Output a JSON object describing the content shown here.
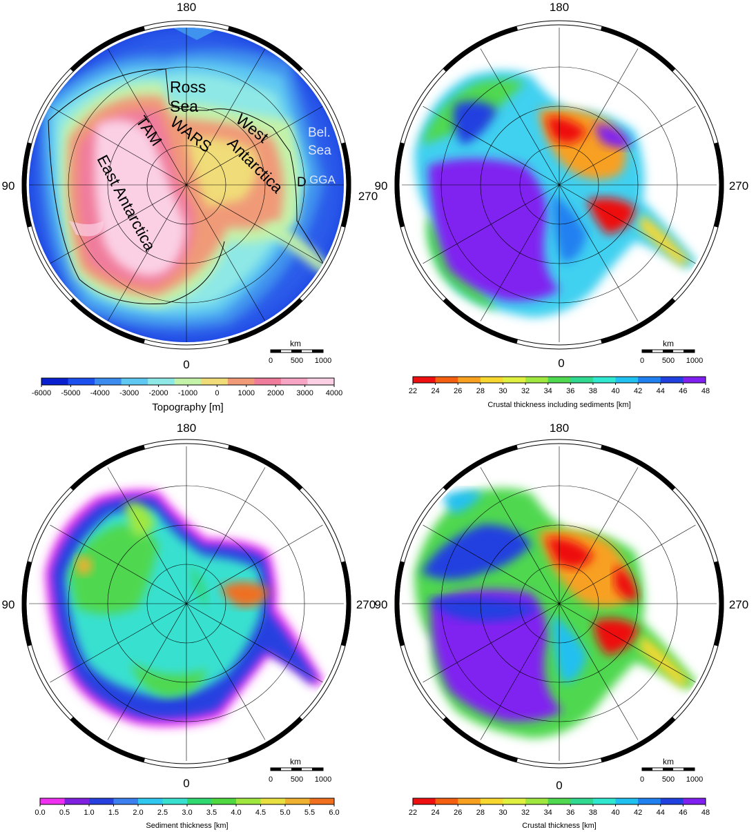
{
  "panels": [
    {
      "id": "topography",
      "longitude_labels": {
        "top": "180",
        "left": "90",
        "right": "270",
        "bottom": "0"
      },
      "scalebar": {
        "unit": "km",
        "ticks": [
          "0",
          "500",
          "1000"
        ]
      },
      "region_labels": [
        "Ross",
        "Sea",
        "TAM",
        "WARS",
        "West",
        "Antarctica",
        "East Antarctica",
        "Bel.",
        "Sea",
        "D",
        "GGA"
      ],
      "colorbar": {
        "title": "Topography [m]",
        "ticks": [
          "-6000",
          "-5000",
          "-4000",
          "-3000",
          "-2000",
          "-1000",
          "0",
          "1000",
          "2000",
          "3000",
          "4000"
        ],
        "colors": [
          "#0a1fd0",
          "#1c50ee",
          "#3c8cf0",
          "#5ec8f2",
          "#8ee8e6",
          "#c4f2a8",
          "#f0dc78",
          "#f09a78",
          "#f07c9c",
          "#f8a4c4",
          "#fbd0e4"
        ]
      }
    },
    {
      "id": "crustal-thickness-with-sediments",
      "longitude_labels": {
        "top": "180",
        "left": "90",
        "right": "270",
        "bottom": "0"
      },
      "scalebar": {
        "unit": "km",
        "ticks": [
          "0",
          "500",
          "1000"
        ]
      },
      "colorbar": {
        "title": "Crustal thickness including sediments [km]",
        "ticks": [
          "22",
          "24",
          "26",
          "28",
          "30",
          "32",
          "34",
          "36",
          "38",
          "40",
          "42",
          "44",
          "46",
          "48"
        ],
        "colors": [
          "#ee1010",
          "#f46010",
          "#f8a020",
          "#f8d830",
          "#e0f040",
          "#a0e840",
          "#50d850",
          "#30d890",
          "#30e8d0",
          "#20c0f0",
          "#2080f0",
          "#2040e0",
          "#8020f0"
        ]
      }
    },
    {
      "id": "sediment-thickness",
      "longitude_labels": {
        "top": "180",
        "left": "90",
        "right": "270",
        "bottom": "0"
      },
      "scalebar": {
        "unit": "km",
        "ticks": [
          "0",
          "500",
          "1000"
        ]
      },
      "colorbar": {
        "title": "Sediment thickness [km]",
        "ticks": [
          "0.0",
          "0.5",
          "1.0",
          "1.5",
          "2.0",
          "2.5",
          "3.0",
          "3.5",
          "4.0",
          "4.5",
          "5.0",
          "5.5",
          "6.0"
        ],
        "colors": [
          "#f030f0",
          "#8020e0",
          "#2840e0",
          "#3c80f0",
          "#30c8f0",
          "#38e0d0",
          "#30d870",
          "#50d840",
          "#a0e840",
          "#e8e040",
          "#f0b030",
          "#f07020"
        ]
      }
    },
    {
      "id": "crustal-thickness",
      "longitude_labels": {
        "top": "180",
        "left": "90",
        "right": "270",
        "bottom": "0"
      },
      "scalebar": {
        "unit": "km",
        "ticks": [
          "0",
          "500",
          "1000"
        ]
      },
      "colorbar": {
        "title": "Crustal thickness [km]",
        "ticks": [
          "22",
          "24",
          "26",
          "28",
          "30",
          "32",
          "34",
          "36",
          "38",
          "40",
          "42",
          "44",
          "46",
          "48"
        ],
        "colors": [
          "#ee1010",
          "#f46010",
          "#f8a020",
          "#f8d830",
          "#e0f040",
          "#a0e840",
          "#50d850",
          "#30d890",
          "#30e8d0",
          "#20c0f0",
          "#2080f0",
          "#2040e0",
          "#8020f0"
        ]
      }
    }
  ]
}
